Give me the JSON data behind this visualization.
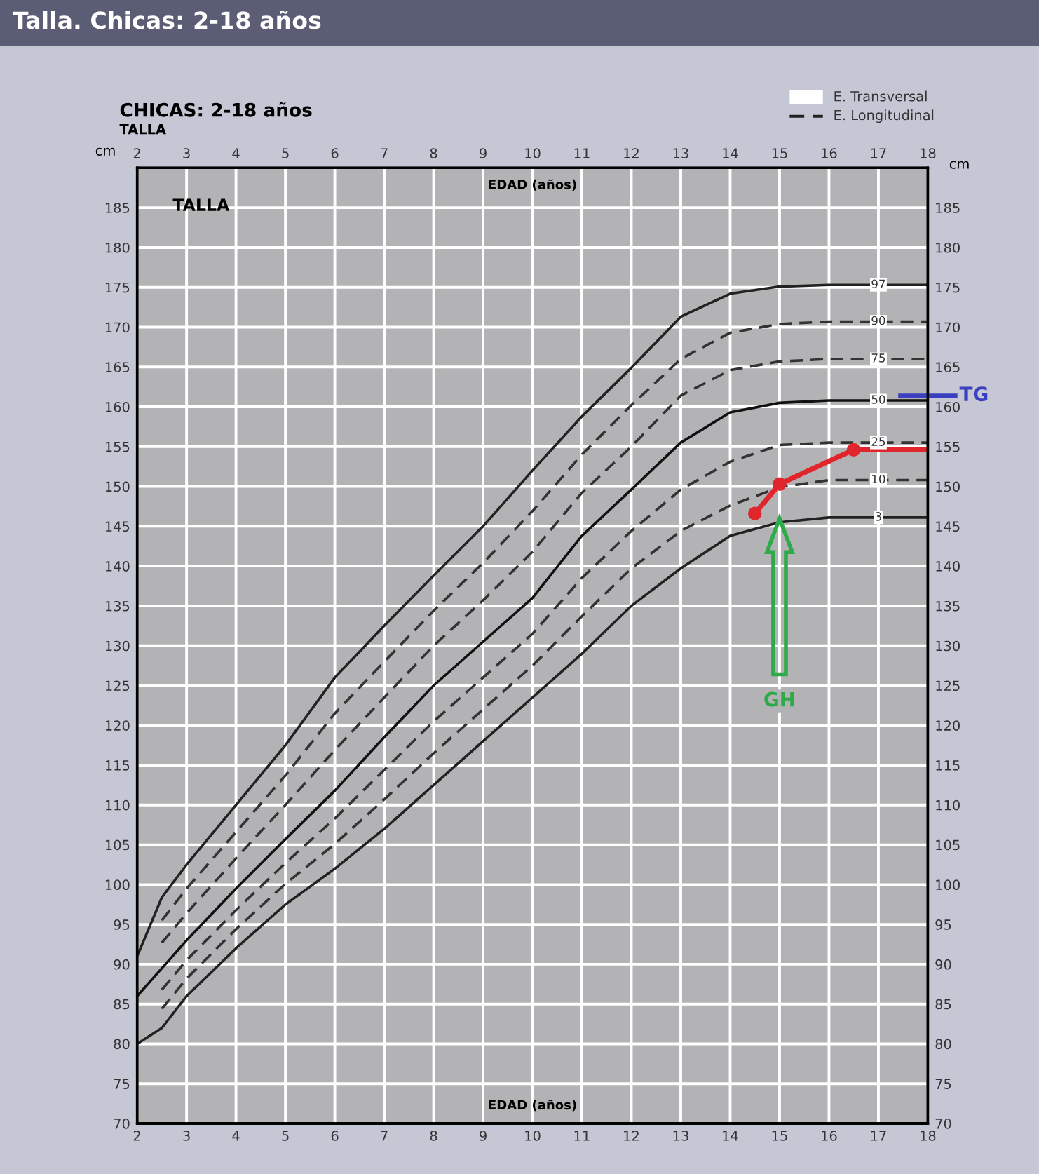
{
  "chart_data": {
    "type": "line",
    "title": "Talla. Chicas: 2-18 años",
    "subtitle": "CHICAS: 2-18 años",
    "xlabel": "EDAD (años)",
    "x2label": "EDAD (años)",
    "ylabel": "cm",
    "y2label": "cm",
    "annotations": [
      "TALLA",
      "TALLA",
      "E. Transversal",
      "E. Longitudinal",
      "GH"
    ],
    "xlim": [
      2,
      18
    ],
    "xticks": [
      2,
      3,
      4,
      5,
      6,
      7,
      8,
      9,
      10,
      11,
      12,
      13,
      14,
      15,
      16,
      17,
      18
    ],
    "x2lim": [
      2,
      18
    ],
    "x2ticks": [
      2,
      3,
      4,
      5,
      6,
      7,
      8,
      9,
      10,
      11,
      12,
      13,
      14,
      15,
      16,
      17,
      18
    ],
    "ylim": [
      70,
      190
    ],
    "yticks": [
      70,
      75,
      80,
      85,
      90,
      95,
      100,
      105,
      110,
      115,
      120,
      125,
      130,
      135,
      140,
      145,
      150,
      155,
      160,
      165,
      170,
      175,
      180,
      185
    ],
    "y2lim": [
      70,
      190
    ],
    "y2ticks": [
      70,
      75,
      80,
      85,
      90,
      95,
      100,
      105,
      110,
      115,
      120,
      125,
      130,
      135,
      140,
      145,
      150,
      155,
      160,
      165,
      170,
      175,
      180,
      185
    ],
    "grid": true,
    "ref_lines": [
      {
        "axis": "y",
        "value": 161.4,
        "label": "TG",
        "color": "#3b3fc0"
      }
    ],
    "series": [
      {
        "name": "97",
        "color": "#222222",
        "line_style": "solid",
        "x": [
          2,
          2.5,
          3,
          4,
          5,
          6,
          7,
          8,
          9,
          10,
          11,
          12,
          13,
          14,
          15,
          16,
          17,
          18
        ],
        "values": [
          91,
          98.4,
          102.5,
          110,
          117.5,
          126,
          132.5,
          138.8,
          145,
          152,
          158.8,
          164.9,
          171.3,
          174.2,
          175.1,
          175.3,
          175.3,
          175.3
        ]
      },
      {
        "name": "90",
        "color": "#333333",
        "line_style": "dashed",
        "x": [
          2.5,
          3,
          4,
          5,
          6,
          7,
          8,
          9,
          10,
          11,
          12,
          13,
          14,
          15,
          16,
          17,
          18
        ],
        "values": [
          95.5,
          99.5,
          106.6,
          113.7,
          121.5,
          128,
          134.4,
          140.4,
          146.9,
          154,
          160.2,
          166,
          169.3,
          170.4,
          170.7,
          170.7,
          170.7
        ]
      },
      {
        "name": "75",
        "color": "#333333",
        "line_style": "dashed",
        "x": [
          2.5,
          3,
          4,
          5,
          6,
          7,
          8,
          9,
          10,
          11,
          12,
          13,
          14,
          15,
          16,
          17,
          18
        ],
        "values": [
          92.7,
          96.4,
          103.3,
          110,
          116.9,
          123.5,
          130,
          135.7,
          141.8,
          149.2,
          155,
          161.4,
          164.6,
          165.7,
          166,
          166,
          166
        ]
      },
      {
        "name": "50",
        "color": "#111111",
        "line_style": "solid",
        "x": [
          2,
          2.5,
          3,
          4,
          5,
          6,
          7,
          8,
          9,
          10,
          11,
          12,
          13,
          14,
          15,
          16,
          17,
          18
        ],
        "values": [
          86,
          89.5,
          93,
          99.5,
          105.7,
          111.8,
          118.5,
          125,
          130.5,
          136,
          143.8,
          149.6,
          155.5,
          159.3,
          160.5,
          160.8,
          160.8,
          160.8
        ]
      },
      {
        "name": "25",
        "color": "#333333",
        "line_style": "dashed",
        "x": [
          2.5,
          3,
          4,
          5,
          6,
          7,
          8,
          9,
          10,
          11,
          12,
          13,
          14,
          15,
          16,
          17,
          18
        ],
        "values": [
          86.8,
          90.5,
          96.8,
          102.7,
          108.3,
          114.4,
          120.5,
          126,
          131.5,
          138.5,
          144.4,
          149.6,
          153.1,
          155.2,
          155.5,
          155.5,
          155.5
        ]
      },
      {
        "name": "10",
        "color": "#333333",
        "line_style": "dashed",
        "x": [
          2.5,
          3,
          4,
          5,
          6,
          7,
          8,
          9,
          10,
          11,
          12,
          13,
          14,
          15,
          16,
          17,
          18
        ],
        "values": [
          84.4,
          88.2,
          94.4,
          100.1,
          105.1,
          110.7,
          116.5,
          122,
          127.5,
          133.7,
          139.7,
          144.4,
          147.6,
          149.9,
          150.8,
          150.8,
          150.8
        ]
      },
      {
        "name": "3",
        "color": "#222222",
        "line_style": "solid",
        "x": [
          2,
          2.5,
          3,
          4,
          5,
          6,
          7,
          8,
          9,
          10,
          11,
          12,
          13,
          14,
          15,
          16,
          17,
          18
        ],
        "values": [
          80,
          82,
          86,
          92,
          97.5,
          102,
          107,
          112.5,
          118,
          123.5,
          129,
          135,
          139.7,
          143.8,
          145.5,
          146.1,
          146.1,
          146.1
        ]
      },
      {
        "color": "#e0262c",
        "marker": "circle",
        "line_style": "solid",
        "x": [
          14.5,
          15,
          16.5
        ],
        "values": [
          146.6,
          150.3,
          154.6
        ]
      },
      {
        "color": "#e0262c",
        "line_style": "solid",
        "x": [
          16.5,
          18
        ],
        "values": [
          154.6,
          154.6
        ]
      }
    ]
  }
}
